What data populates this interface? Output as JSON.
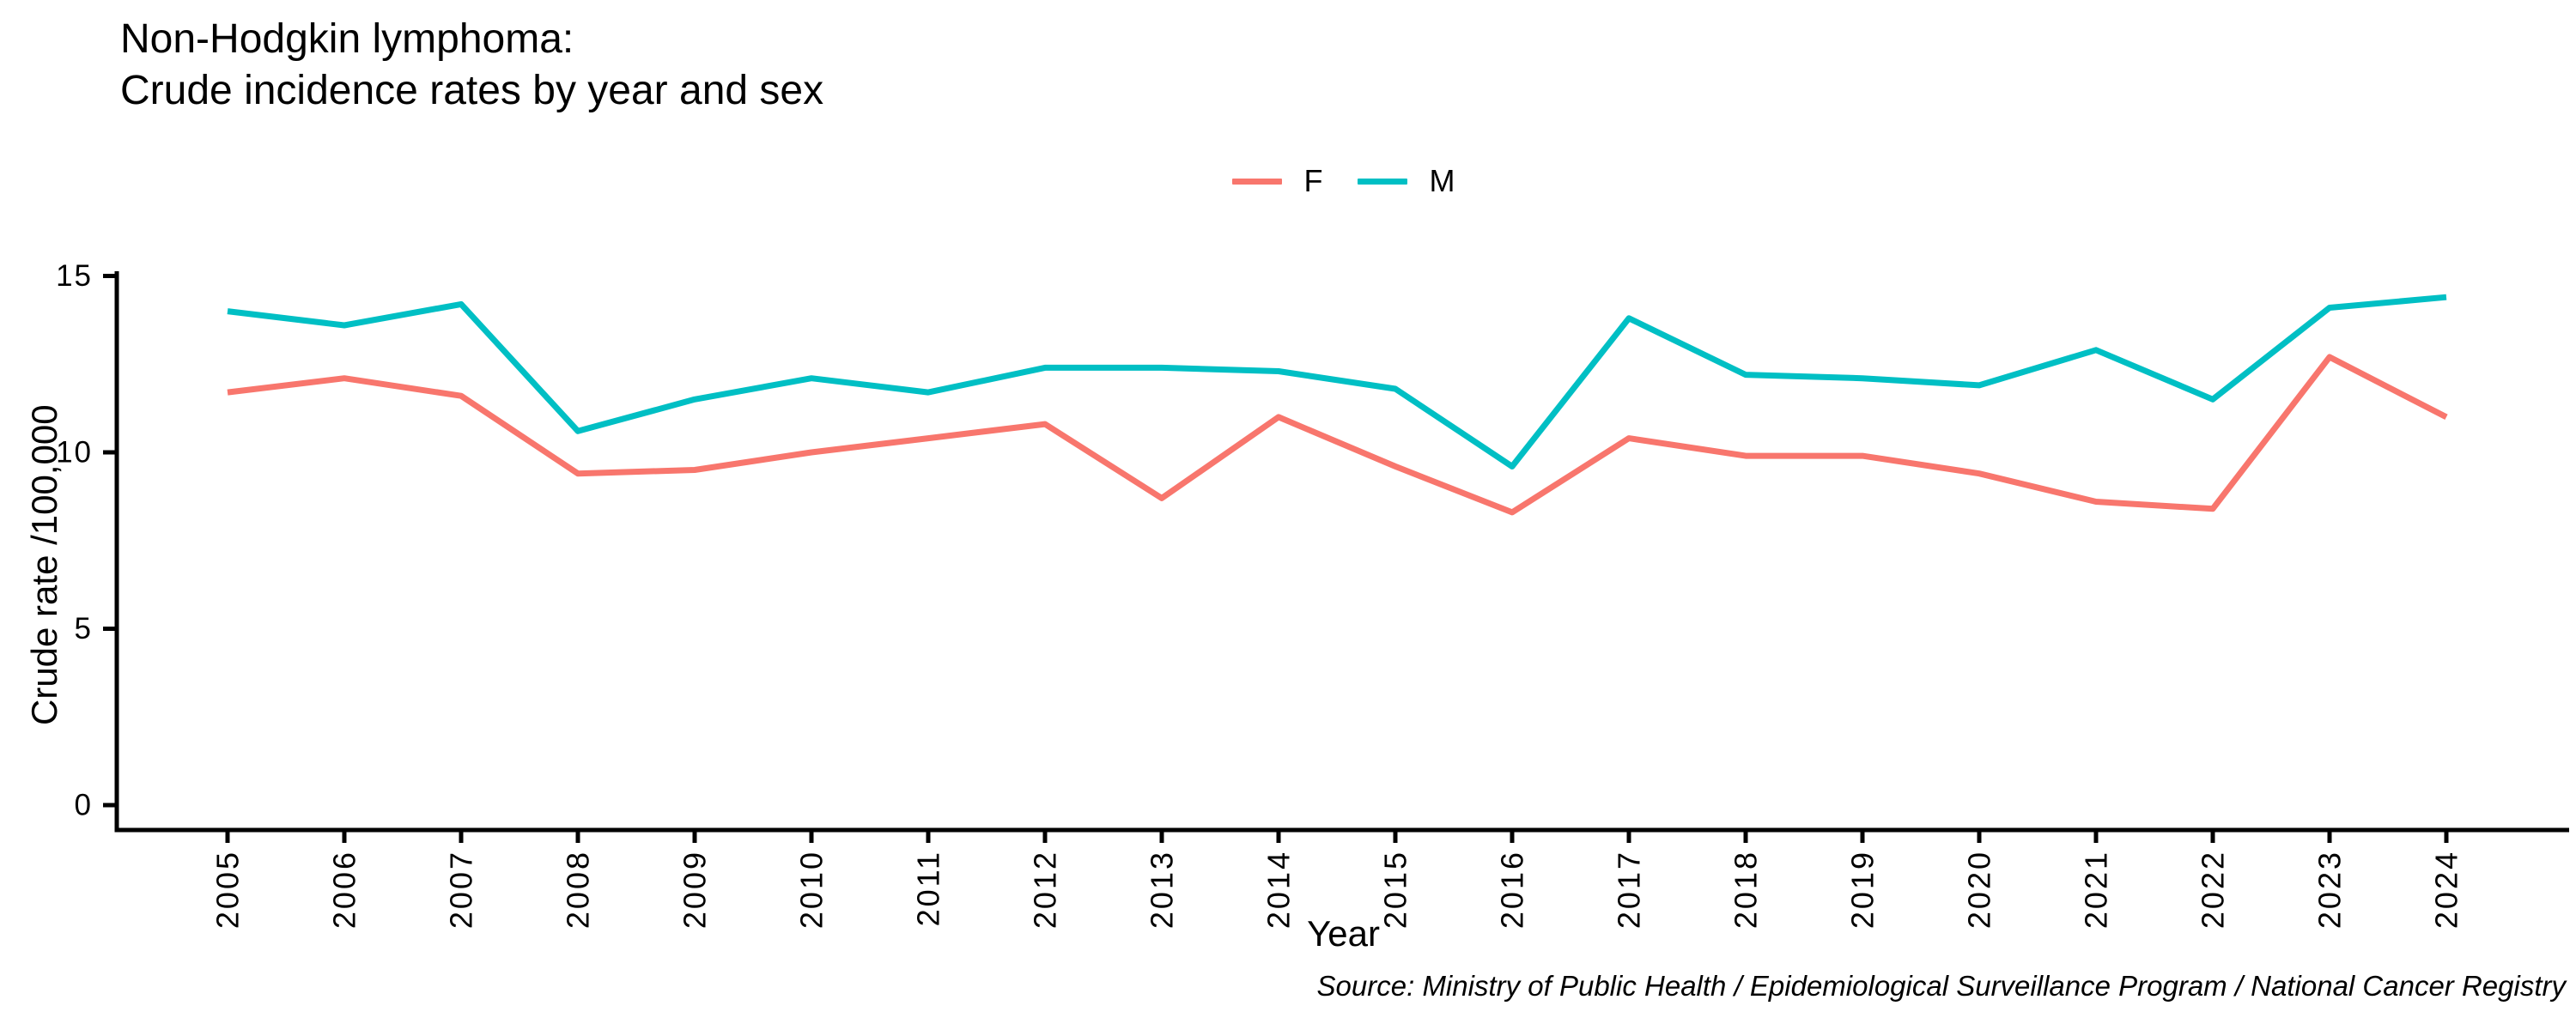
{
  "title": {
    "line1": "Non-Hodgkin lymphoma:",
    "line2": "Crude incidence rates by year and sex"
  },
  "axes": {
    "y_label": "Crude rate /100,000",
    "x_label": "Year",
    "y_ticks": [
      "0",
      "5",
      "10",
      "15"
    ]
  },
  "source": "Source: Ministry of Public Health / Epidemiological Surveillance Program / National Cancer Registry",
  "colors": {
    "female_line": "#F8766D",
    "male_line": "#00BFC4",
    "axis": "#000000",
    "text": "#000000"
  },
  "chart_data": {
    "type": "line",
    "title": "Non-Hodgkin lymphoma: Crude incidence rates by year and sex",
    "xlabel": "Year",
    "ylabel": "Crude rate /100,000",
    "ylim": [
      0,
      15
    ],
    "y_tick_values": [
      0,
      5,
      10,
      15
    ],
    "grid": false,
    "legend_position": "top-center",
    "x": [
      2005,
      2006,
      2007,
      2008,
      2009,
      2010,
      2011,
      2012,
      2013,
      2014,
      2015,
      2016,
      2017,
      2018,
      2019,
      2020,
      2021,
      2022,
      2023,
      2024
    ],
    "series": [
      {
        "name": "F",
        "color": "#F8766D",
        "values": [
          11.7,
          12.1,
          11.6,
          9.4,
          9.5,
          10.0,
          10.4,
          10.8,
          8.7,
          11.0,
          9.6,
          8.3,
          10.4,
          9.9,
          9.9,
          9.4,
          8.6,
          8.4,
          12.7,
          11.0
        ]
      },
      {
        "name": "M",
        "color": "#00BFC4",
        "values": [
          14.0,
          13.6,
          14.2,
          10.6,
          11.5,
          12.1,
          11.7,
          12.4,
          12.4,
          12.3,
          11.8,
          9.6,
          13.8,
          12.2,
          12.1,
          11.9,
          12.9,
          11.5,
          14.1,
          14.4
        ]
      }
    ]
  }
}
